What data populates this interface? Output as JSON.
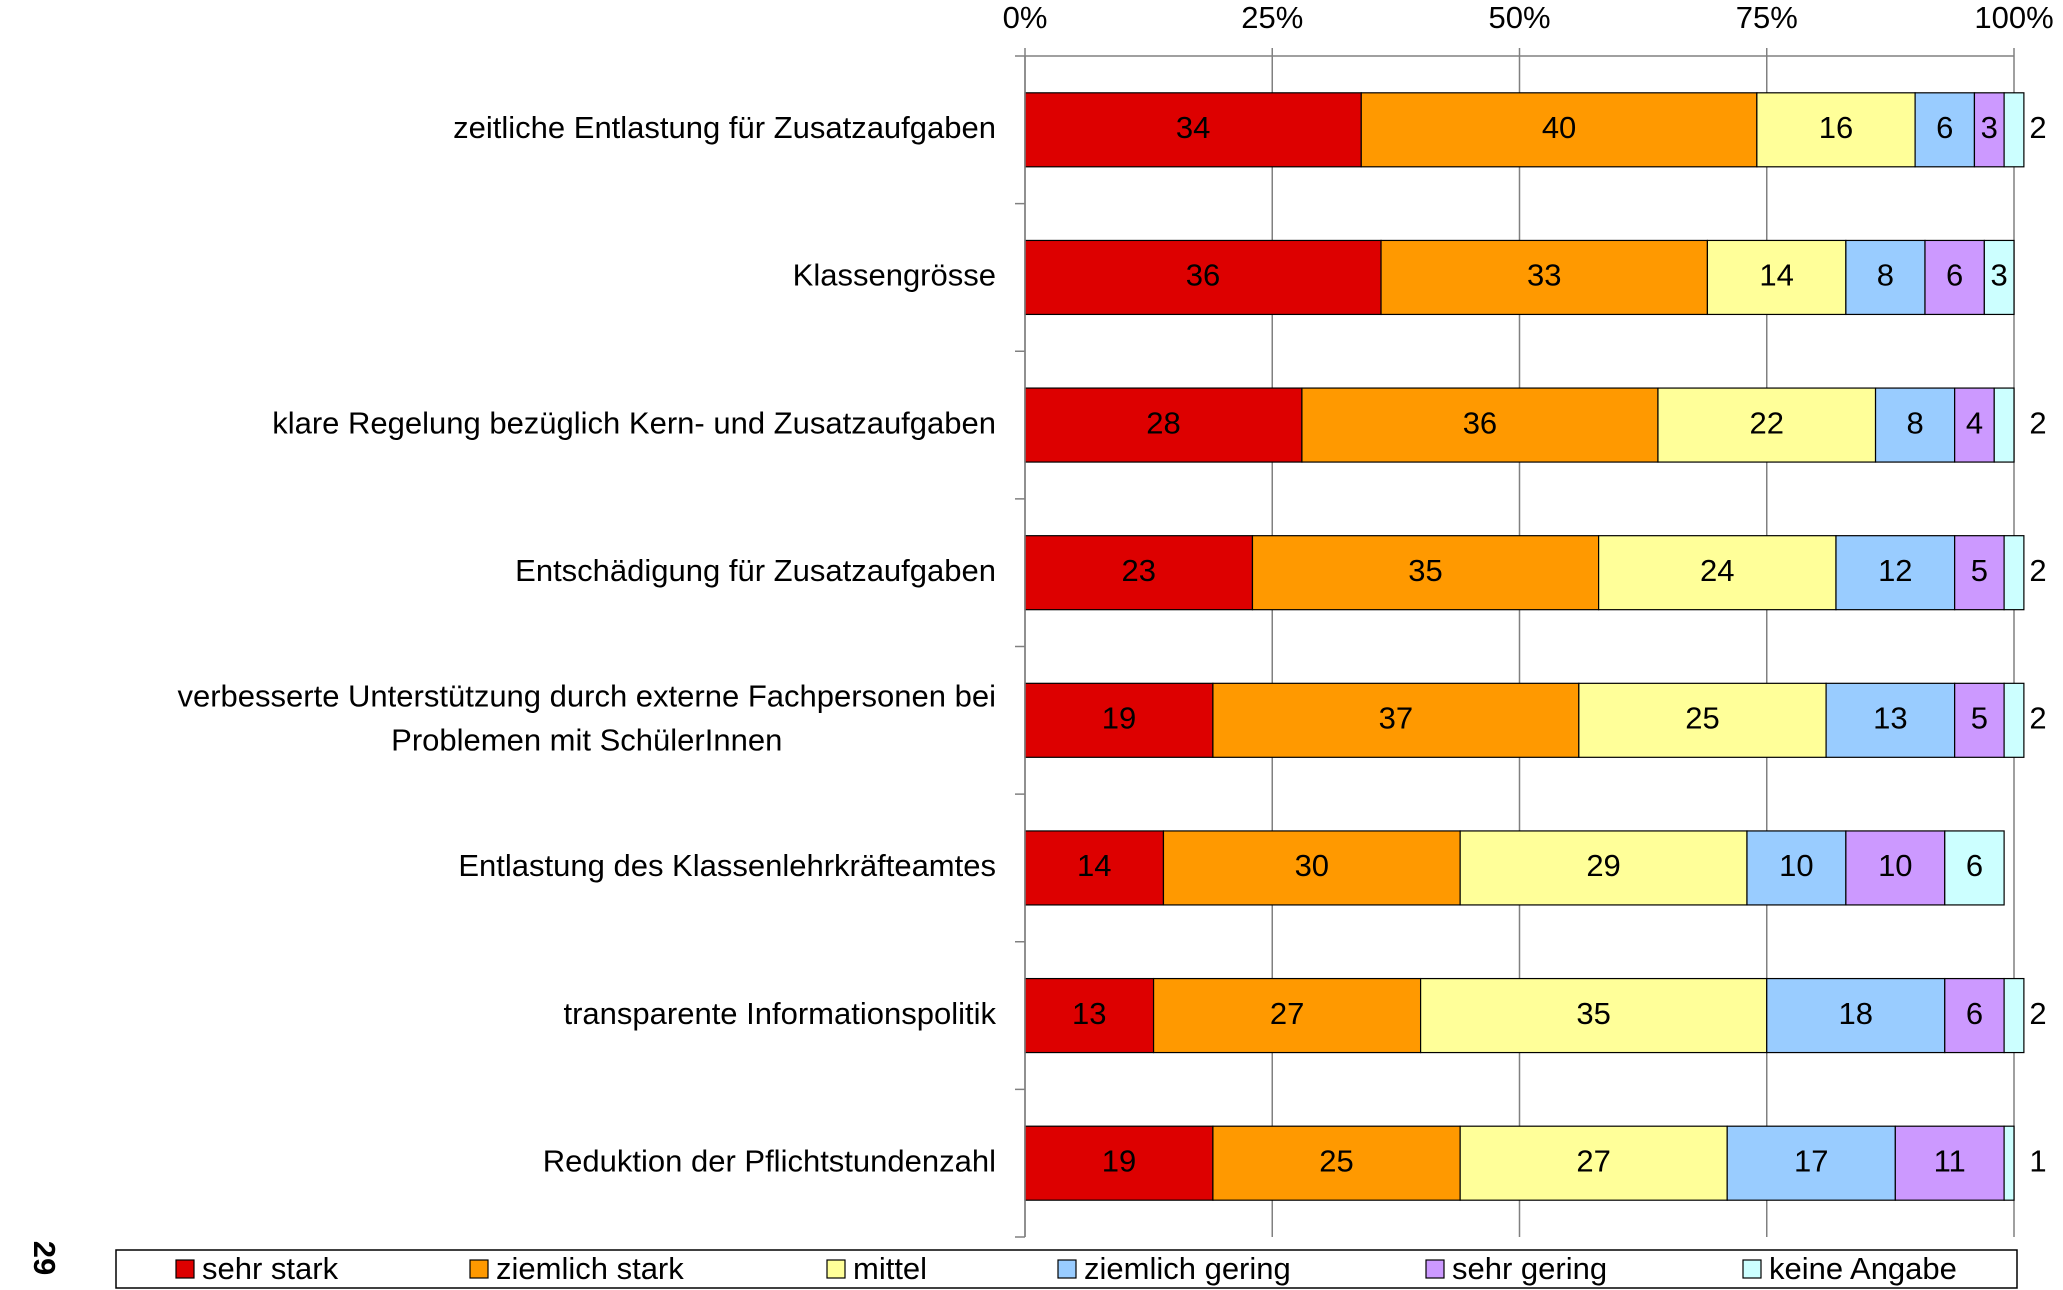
{
  "page_number": "29",
  "chart_data": {
    "type": "bar",
    "orientation": "horizontal",
    "stacked": true,
    "categories": [
      "zeitliche Entlastung für Zusatzaufgaben",
      "Klassengrösse",
      "klare Regelung bezüglich Kern- und Zusatzaufgaben",
      "Entschädigung für Zusatzaufgaben",
      "verbesserte Unterstützung durch externe Fachpersonen bei\nProblemen mit SchülerInnen",
      "Entlastung des Klassenlehrkräfteamtes",
      "transparente Informationspolitik",
      "Reduktion der Pflichtstundenzahl"
    ],
    "series": [
      {
        "name": "sehr stark",
        "color": "#dd0000",
        "values": [
          34,
          36,
          28,
          23,
          19,
          14,
          13,
          19
        ]
      },
      {
        "name": "ziemlich stark",
        "color": "#ff9900",
        "values": [
          40,
          33,
          36,
          35,
          37,
          30,
          27,
          25
        ]
      },
      {
        "name": "mittel",
        "color": "#ffff99",
        "values": [
          16,
          14,
          22,
          24,
          25,
          29,
          35,
          27
        ]
      },
      {
        "name": "ziemlich gering",
        "color": "#99ccff",
        "values": [
          6,
          8,
          8,
          12,
          13,
          10,
          18,
          17
        ]
      },
      {
        "name": "sehr gering",
        "color": "#cc99ff",
        "values": [
          3,
          6,
          4,
          5,
          5,
          10,
          6,
          11
        ]
      },
      {
        "name": "keine Angabe",
        "color": "#ccffff",
        "values": [
          2,
          3,
          2,
          2,
          2,
          6,
          2,
          1
        ]
      }
    ],
    "xlim": [
      0,
      100
    ],
    "xticks": [
      {
        "value": 0,
        "label": "0%"
      },
      {
        "value": 25,
        "label": "25%"
      },
      {
        "value": 50,
        "label": "50%"
      },
      {
        "value": 75,
        "label": "75%"
      },
      {
        "value": 100,
        "label": "100%"
      }
    ],
    "grid": true,
    "legend": "bottom"
  }
}
